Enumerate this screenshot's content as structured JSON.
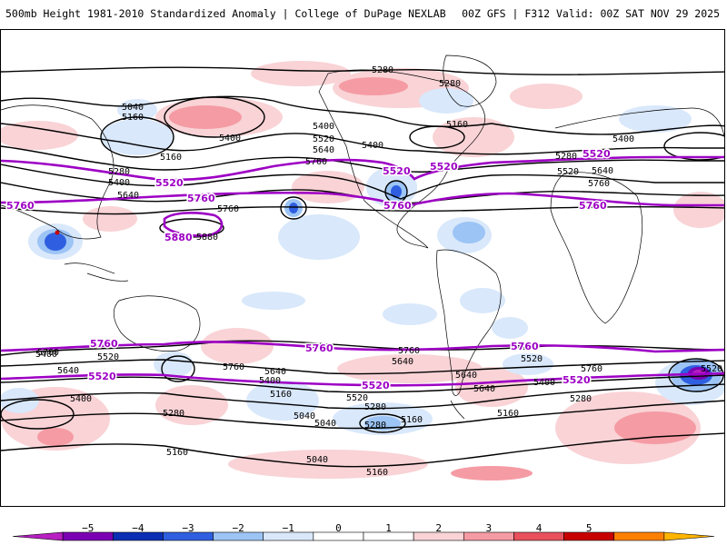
{
  "header": {
    "title_left": "500mb Height 1981-2010 Standardized Anomaly | College of DuPage NEXLAB",
    "title_right": "00Z GFS | F312 Valid: 00Z SAT NOV 29 2025"
  },
  "contour_labels_black": [
    {
      "text": "5280"
    },
    {
      "text": "5280"
    },
    {
      "text": "5040"
    },
    {
      "text": "5160"
    },
    {
      "text": "5400"
    },
    {
      "text": "5400"
    },
    {
      "text": "5520"
    },
    {
      "text": "5640"
    },
    {
      "text": "5400"
    },
    {
      "text": "5160"
    },
    {
      "text": "5280"
    },
    {
      "text": "5400"
    },
    {
      "text": "5640"
    },
    {
      "text": "5760"
    },
    {
      "text": "5160"
    },
    {
      "text": "5760"
    },
    {
      "text": "5880"
    },
    {
      "text": "5400"
    },
    {
      "text": "5520"
    },
    {
      "text": "5640"
    },
    {
      "text": "5280"
    },
    {
      "text": "5760"
    },
    {
      "text": "5520"
    },
    {
      "text": "5640"
    },
    {
      "text": "5400"
    },
    {
      "text": "5280"
    },
    {
      "text": "5160"
    },
    {
      "text": "5040"
    },
    {
      "text": "5760"
    },
    {
      "text": "5640"
    },
    {
      "text": "5400"
    },
    {
      "text": "5520"
    },
    {
      "text": "5160"
    },
    {
      "text": "5280"
    },
    {
      "text": "5040"
    },
    {
      "text": "5160"
    },
    {
      "text": "5160"
    },
    {
      "text": "5760"
    },
    {
      "text": "5520"
    },
    {
      "text": "5400"
    },
    {
      "text": "5640"
    },
    {
      "text": "5280"
    },
    {
      "text": "5160"
    },
    {
      "text": "5040"
    },
    {
      "text": "5760"
    },
    {
      "text": "5400"
    },
    {
      "text": "5520"
    },
    {
      "text": "5640"
    },
    {
      "text": "5760"
    },
    {
      "text": "5280"
    },
    {
      "text": "5520"
    },
    {
      "text": "5640"
    }
  ],
  "contour_labels_purple": [
    {
      "text": "5760"
    },
    {
      "text": "5520"
    },
    {
      "text": "5760"
    },
    {
      "text": "5880"
    },
    {
      "text": "5520"
    },
    {
      "text": "5760"
    },
    {
      "text": "5520"
    },
    {
      "text": "5760"
    },
    {
      "text": "5760"
    },
    {
      "text": "5520"
    },
    {
      "text": "5760"
    },
    {
      "text": "5760"
    },
    {
      "text": "5520"
    },
    {
      "text": "5520"
    },
    {
      "text": "5520"
    }
  ],
  "colorbar": {
    "ticks": [
      "−5",
      "−4",
      "−3",
      "−2",
      "−1",
      "0",
      "1",
      "2",
      "3",
      "4",
      "5"
    ],
    "colors": [
      "#b61fc1",
      "#7a00b3",
      "#0a2fb5",
      "#2f5fe0",
      "#9cc4f5",
      "#d9e8fb",
      "#ffffff",
      "#ffffff",
      "#f9d3d6",
      "#f59ba4",
      "#e8505c",
      "#c70000",
      "#ff7f00",
      "#ffb400"
    ]
  }
}
